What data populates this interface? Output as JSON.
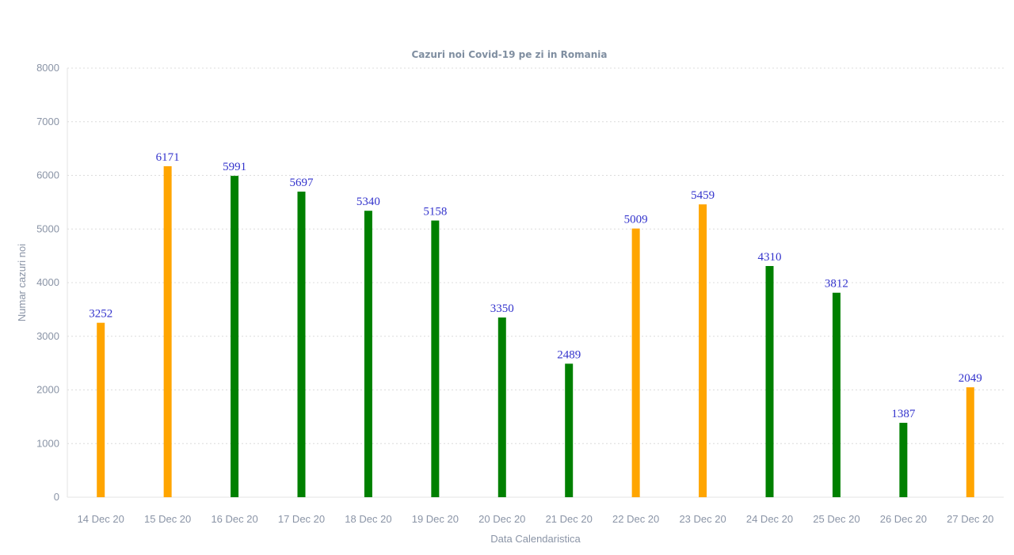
{
  "chart_data": {
    "type": "bar",
    "title": "Cazuri noi Covid-19 pe zi in Romania",
    "xlabel": "Data Calendaristica",
    "ylabel": "Numar cazuri noi",
    "ylim": [
      0,
      8000
    ],
    "yticks": [
      0,
      1000,
      2000,
      3000,
      4000,
      5000,
      6000,
      7000,
      8000
    ],
    "grid": true,
    "categories": [
      "14 Dec 20",
      "15 Dec 20",
      "16 Dec 20",
      "17 Dec 20",
      "18 Dec 20",
      "19 Dec 20",
      "20 Dec 20",
      "21 Dec 20",
      "22 Dec 20",
      "23 Dec 20",
      "24 Dec 20",
      "25 Dec 20",
      "26 Dec 20",
      "27 Dec 20"
    ],
    "values": [
      3252,
      6171,
      5991,
      5697,
      5340,
      5158,
      3350,
      2489,
      5009,
      5459,
      4310,
      3812,
      1387,
      2049
    ],
    "bar_colors": [
      "#ffa500",
      "#ffa500",
      "#008000",
      "#008000",
      "#008000",
      "#008000",
      "#008000",
      "#008000",
      "#ffa500",
      "#ffa500",
      "#008000",
      "#008000",
      "#008000",
      "#ffa500"
    ],
    "data_label_color": "#3333cc"
  }
}
